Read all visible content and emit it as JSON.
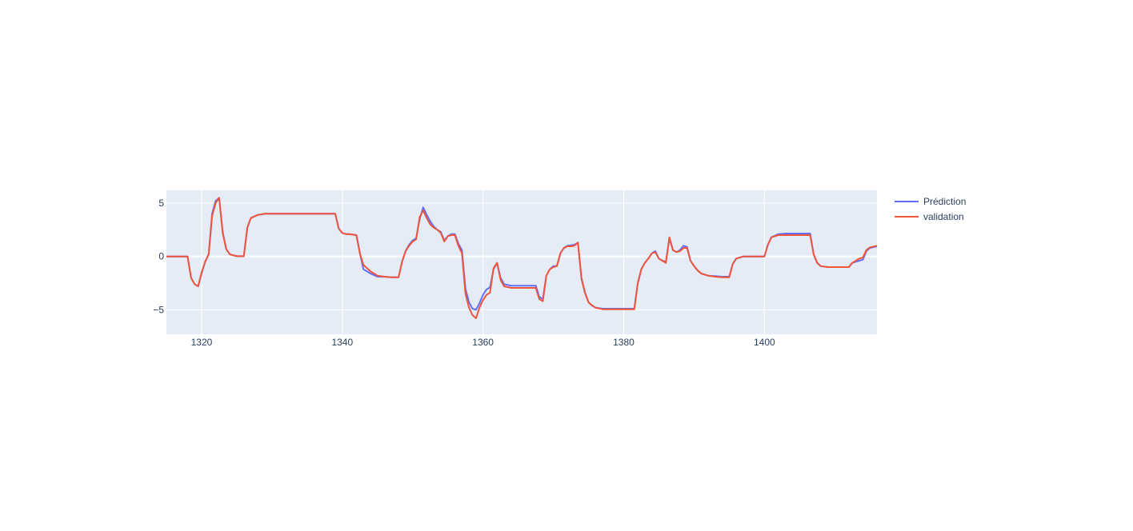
{
  "chart_data": {
    "type": "line",
    "title": "",
    "xlabel": "",
    "ylabel": "",
    "xlim": [
      1315,
      1416
    ],
    "ylim": [
      -7.3,
      6.2
    ],
    "x_ticks": [
      1320,
      1340,
      1360,
      1380,
      1400
    ],
    "y_ticks": [
      5,
      0,
      -5
    ],
    "y_tick_labels": [
      "5",
      "0",
      "−5"
    ],
    "grid": true,
    "legend_position": "top-right",
    "colors": {
      "plot_bg": "#e5ecf6",
      "grid": "#ffffff",
      "paper_bg": "#ffffff"
    },
    "series": [
      {
        "name": "Prédiction",
        "color": "#636efa",
        "x": [
          1315,
          1316,
          1317,
          1318,
          1318.5,
          1319,
          1319.5,
          1320,
          1320.5,
          1321,
          1321.5,
          1322,
          1322.5,
          1323,
          1323.5,
          1324,
          1325,
          1326,
          1326.5,
          1327,
          1328,
          1329,
          1330,
          1332,
          1335,
          1338,
          1339,
          1339.5,
          1340,
          1340.5,
          1341,
          1342,
          1342.5,
          1343,
          1344,
          1345,
          1346,
          1347,
          1348,
          1348.5,
          1349,
          1349.5,
          1350,
          1350.5,
          1351,
          1351.5,
          1352,
          1352.5,
          1353,
          1353.5,
          1354,
          1354.5,
          1355,
          1355.5,
          1356,
          1356.5,
          1357,
          1357.5,
          1358,
          1358.5,
          1359,
          1359.5,
          1360,
          1360.5,
          1361,
          1361.5,
          1362,
          1362.5,
          1363,
          1364,
          1365,
          1366,
          1367,
          1367.5,
          1368,
          1368.5,
          1369,
          1369.5,
          1370,
          1370.5,
          1371,
          1371.5,
          1372,
          1372.5,
          1373,
          1373.5,
          1374,
          1374.5,
          1375,
          1375.5,
          1376,
          1377,
          1378,
          1380,
          1381,
          1381.5,
          1382,
          1382.5,
          1383,
          1383.5,
          1384,
          1384.5,
          1385,
          1385.5,
          1386,
          1386.5,
          1387,
          1387.5,
          1388,
          1388.5,
          1389,
          1389.5,
          1390,
          1390.5,
          1391,
          1392,
          1393,
          1394,
          1395,
          1395.5,
          1396,
          1397,
          1398,
          1399,
          1400,
          1400.5,
          1401,
          1402,
          1403,
          1404,
          1405,
          1406,
          1406.5,
          1407,
          1407.5,
          1408,
          1409,
          1410,
          1411,
          1412,
          1412.5,
          1413,
          1413.5,
          1414,
          1414.5,
          1415,
          1416
        ],
        "y": [
          0,
          0,
          0,
          0,
          -2,
          -2.6,
          -2.8,
          -1.6,
          -0.5,
          0.2,
          4,
          5.2,
          5.5,
          2.3,
          0.7,
          0.2,
          0.02,
          0.02,
          2.7,
          3.6,
          3.9,
          4,
          4,
          4,
          4,
          4,
          4,
          2.6,
          2.2,
          2.1,
          2.1,
          2.0,
          0.3,
          -1.2,
          -1.6,
          -1.9,
          -1.9,
          -1.95,
          -1.95,
          -0.5,
          0.5,
          1.1,
          1.5,
          1.7,
          3.5,
          4.6,
          3.9,
          3.3,
          2.8,
          2.5,
          2.3,
          1.5,
          1.9,
          2.1,
          2.1,
          1.2,
          0.6,
          -3.0,
          -4.3,
          -4.9,
          -5.0,
          -4.4,
          -3.6,
          -3.1,
          -2.9,
          -1.2,
          -0.6,
          -2.0,
          -2.6,
          -2.75,
          -2.75,
          -2.75,
          -2.75,
          -2.75,
          -3.8,
          -4.0,
          -1.8,
          -1.2,
          -0.9,
          -0.9,
          0.3,
          0.8,
          1.0,
          1.05,
          1.1,
          1.3,
          -2.1,
          -3.4,
          -4.3,
          -4.6,
          -4.8,
          -4.9,
          -4.9,
          -4.9,
          -4.9,
          -4.9,
          -2.5,
          -1.2,
          -0.6,
          -0.2,
          0.3,
          0.5,
          -0.2,
          -0.4,
          -0.5,
          1.7,
          0.6,
          0.4,
          0.6,
          1.0,
          0.9,
          -0.4,
          -0.9,
          -1.3,
          -1.6,
          -1.8,
          -1.85,
          -1.9,
          -1.9,
          -0.7,
          -0.2,
          0,
          0,
          0,
          0,
          1.1,
          1.8,
          2.1,
          2.15,
          2.15,
          2.15,
          2.15,
          2.15,
          0.2,
          -0.6,
          -0.9,
          -1.0,
          -1.0,
          -1.0,
          -1.0,
          -0.6,
          -0.5,
          -0.4,
          -0.3,
          0.5,
          0.8,
          0.95
        ],
        "note": ""
      },
      {
        "name": "validation",
        "color": "#ef553b",
        "x": [
          1315,
          1316,
          1317,
          1318,
          1318.5,
          1319,
          1319.5,
          1320,
          1320.5,
          1321,
          1321.5,
          1322,
          1322.5,
          1323,
          1323.5,
          1324,
          1325,
          1326,
          1326.5,
          1327,
          1328,
          1329,
          1330,
          1332,
          1335,
          1338,
          1339,
          1339.5,
          1340,
          1340.5,
          1341,
          1342,
          1342.5,
          1343,
          1344,
          1345,
          1346,
          1347,
          1348,
          1348.5,
          1349,
          1349.5,
          1350,
          1350.5,
          1351,
          1351.5,
          1352,
          1352.5,
          1353,
          1353.5,
          1354,
          1354.5,
          1355,
          1355.5,
          1356,
          1356.5,
          1357,
          1357.5,
          1358,
          1358.5,
          1359,
          1359.5,
          1360,
          1360.5,
          1361,
          1361.5,
          1362,
          1362.5,
          1363,
          1364,
          1365,
          1366,
          1367,
          1367.5,
          1368,
          1368.5,
          1369,
          1369.5,
          1370,
          1370.5,
          1371,
          1371.5,
          1372,
          1372.5,
          1373,
          1373.5,
          1374,
          1374.5,
          1375,
          1375.5,
          1376,
          1377,
          1378,
          1380,
          1381,
          1381.5,
          1382,
          1382.5,
          1383,
          1383.5,
          1384,
          1384.5,
          1385,
          1385.5,
          1386,
          1386.5,
          1387,
          1387.5,
          1388,
          1388.5,
          1389,
          1389.5,
          1390,
          1390.5,
          1391,
          1392,
          1393,
          1394,
          1395,
          1395.5,
          1396,
          1397,
          1398,
          1399,
          1400,
          1400.5,
          1401,
          1402,
          1403,
          1404,
          1405,
          1406,
          1406.5,
          1407,
          1407.5,
          1408,
          1409,
          1410,
          1411,
          1412,
          1412.5,
          1413,
          1413.5,
          1414,
          1414.5,
          1415,
          1416
        ],
        "y": [
          0,
          0,
          0,
          0,
          -2,
          -2.6,
          -2.8,
          -1.5,
          -0.5,
          0.2,
          3.8,
          5.0,
          5.5,
          2.2,
          0.7,
          0.2,
          0.02,
          0.02,
          2.7,
          3.6,
          3.9,
          4,
          4,
          4,
          4,
          4,
          4,
          2.6,
          2.2,
          2.1,
          2.1,
          2.0,
          0.3,
          -0.8,
          -1.4,
          -1.8,
          -1.9,
          -1.95,
          -1.95,
          -0.5,
          0.5,
          1.0,
          1.4,
          1.6,
          3.7,
          4.3,
          3.6,
          3.0,
          2.7,
          2.5,
          2.2,
          1.4,
          1.9,
          2.0,
          2.0,
          1.0,
          0.3,
          -3.5,
          -4.8,
          -5.5,
          -5.8,
          -4.8,
          -4.1,
          -3.6,
          -3.4,
          -1.1,
          -0.6,
          -2.2,
          -2.8,
          -2.95,
          -2.95,
          -2.95,
          -2.95,
          -2.95,
          -4.0,
          -4.2,
          -1.8,
          -1.2,
          -1.0,
          -0.9,
          0.3,
          0.8,
          0.95,
          0.95,
          1.0,
          1.3,
          -2.0,
          -3.4,
          -4.3,
          -4.6,
          -4.8,
          -4.95,
          -4.95,
          -4.95,
          -4.95,
          -4.95,
          -2.5,
          -1.2,
          -0.6,
          -0.2,
          0.3,
          0.4,
          -0.2,
          -0.4,
          -0.6,
          1.8,
          0.6,
          0.4,
          0.5,
          0.8,
          0.8,
          -0.4,
          -0.9,
          -1.3,
          -1.6,
          -1.8,
          -1.9,
          -1.95,
          -1.95,
          -0.7,
          -0.2,
          0,
          0,
          0,
          0,
          1.1,
          1.8,
          2.0,
          2.0,
          2.0,
          2.0,
          2.0,
          2.0,
          0.2,
          -0.6,
          -0.9,
          -1.0,
          -1.0,
          -1.0,
          -1.0,
          -0.6,
          -0.4,
          -0.2,
          -0.1,
          0.6,
          0.85,
          1.0
        ]
      }
    ]
  }
}
